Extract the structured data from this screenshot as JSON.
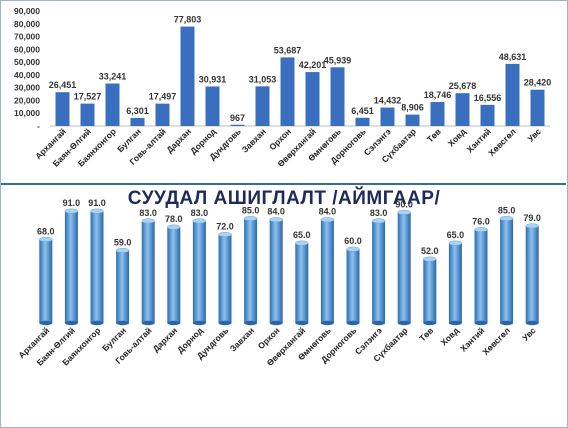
{
  "chart_data": [
    {
      "type": "bar",
      "title": "",
      "categories": [
        "Архангай",
        "Баян-Өлгий",
        "Баянхонгор",
        "Булган",
        "Говь-алтай",
        "Дархан",
        "Дорнод",
        "Дундговь",
        "Завхан",
        "Орхон",
        "Өвөрхангай",
        "Өмнөговь",
        "Дорноговь",
        "Сэлэнгэ",
        "Сүхбаатар",
        "Төв",
        "Ховд",
        "Хэнтий",
        "Хөвсгөл",
        "Увс"
      ],
      "values": [
        26451,
        17527,
        33241,
        6301,
        17497,
        77803,
        30931,
        967,
        31053,
        53687,
        42201,
        45939,
        6451,
        14432,
        8906,
        18746,
        25678,
        16556,
        48631,
        28420
      ],
      "value_labels": [
        "26,451",
        "17,527",
        "33,241",
        "6,301",
        "17,497",
        "77,803",
        "30,931",
        "967",
        "31,053",
        "53,687",
        "42,201",
        "45,939",
        "6,451",
        "14,432",
        "8,906",
        "18,746",
        "25,678",
        "16,556",
        "48,631",
        "28,420"
      ],
      "y_ticks": [
        "90,000",
        "80,000",
        "70,000",
        "60,000",
        "50,000",
        "40,000",
        "30,000",
        "20,000",
        "10,000",
        "-"
      ],
      "ylim": [
        0,
        90000
      ],
      "bar_color": "#3a6fc0"
    },
    {
      "type": "bar",
      "title": "СУУДАЛ АШИГЛАЛТ /АЙМГААР/",
      "categories": [
        "Архангай",
        "Баян-Өлгий",
        "Баянхонгор",
        "Булган",
        "Говь-алтай",
        "Дархан",
        "Дорнод",
        "Дундговь",
        "Завхан",
        "Орхон",
        "Өвөрхангай",
        "Өмнөговь",
        "Дорноговь",
        "Сэлэнгэ",
        "Сүхбаатар",
        "Төв",
        "Ховд",
        "Хэнтий",
        "Хөвсгөл",
        "Увс"
      ],
      "values": [
        68.0,
        91.0,
        91.0,
        59.0,
        83.0,
        78.0,
        83.0,
        72.0,
        85.0,
        84.0,
        65.0,
        84.0,
        60.0,
        83.0,
        90.0,
        52.0,
        65.0,
        76.0,
        85.0,
        79.0
      ],
      "value_labels": [
        "68.0",
        "91.0",
        "91.0",
        "59.0",
        "83.0",
        "78.0",
        "83.0",
        "72.0",
        "85.0",
        "84.0",
        "65.0",
        "84.0",
        "60.0",
        "83.0",
        "90.0",
        "52.0",
        "65.0",
        "76.0",
        "85.0",
        "79.0"
      ],
      "bar_color": "#4a8fd0"
    }
  ]
}
